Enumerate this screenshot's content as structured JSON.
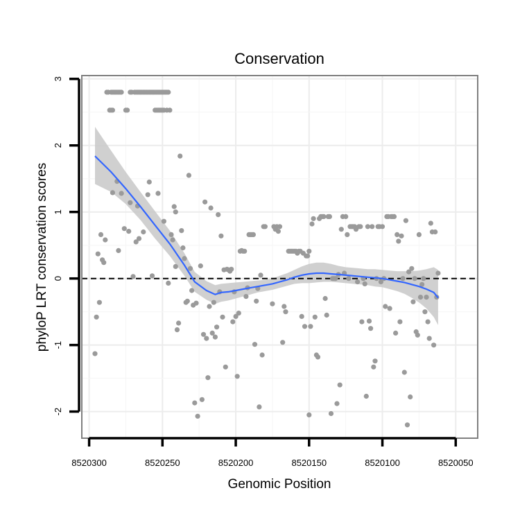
{
  "chart_data": {
    "type": "scatter",
    "title": "Conservation",
    "xlabel": "Genomic Position",
    "ylabel": "phyloP LRT conservation scores",
    "x_reversed": true,
    "xlim": [
      8520305,
      8520035
    ],
    "ylim": [
      -2.4,
      3.05
    ],
    "xticks": [
      8520300,
      8520250,
      8520200,
      8520150,
      8520100,
      8520050
    ],
    "xtick_labels": [
      "8520300",
      "8520250",
      "8520200",
      "8520150",
      "8520100",
      "8520050"
    ],
    "yticks": [
      -2,
      -1,
      0,
      1,
      2,
      3
    ],
    "ytick_labels": [
      "-2",
      "-1",
      "0",
      "1",
      "2",
      "3"
    ],
    "grid": true,
    "reference_line": {
      "y": 0,
      "style": "dashed"
    },
    "colors": {
      "points": "#9a9a9a",
      "smooth": "#3366ff",
      "ribbon": "#c8c8c8",
      "panel_border": "#7f7f7f",
      "grid": "#ececec"
    },
    "points": [
      [
        8520296,
        -1.13
      ],
      [
        8520295,
        -0.58
      ],
      [
        8520294,
        0.37
      ],
      [
        8520293,
        -0.36
      ],
      [
        8520292,
        0.66
      ],
      [
        8520291,
        0.28
      ],
      [
        8520290,
        0.24
      ],
      [
        8520289,
        0.58
      ],
      [
        8520288,
        2.8
      ],
      [
        8520287,
        2.8
      ],
      [
        8520285,
        2.8
      ],
      [
        8520284,
        2.8
      ],
      [
        8520283,
        2.8
      ],
      [
        8520282,
        2.8
      ],
      [
        8520281,
        2.8
      ],
      [
        8520280,
        2.8
      ],
      [
        8520279,
        2.8
      ],
      [
        8520278,
        2.8
      ],
      [
        8520286,
        2.53
      ],
      [
        8520285,
        2.53
      ],
      [
        8520284,
        2.53
      ],
      [
        8520284,
        1.29
      ],
      [
        8520281,
        1.46
      ],
      [
        8520280,
        0.42
      ],
      [
        8520278,
        1.28
      ],
      [
        8520276,
        0.75
      ],
      [
        8520275,
        2.53
      ],
      [
        8520274,
        2.53
      ],
      [
        8520273,
        0.71
      ],
      [
        8520272,
        1.14
      ],
      [
        8520272,
        2.8
      ],
      [
        8520271,
        2.8
      ],
      [
        8520270,
        0.03
      ],
      [
        8520269,
        2.8
      ],
      [
        8520268,
        2.8
      ],
      [
        8520267,
        2.8
      ],
      [
        8520266,
        2.8
      ],
      [
        8520265,
        2.8
      ],
      [
        8520264,
        2.8
      ],
      [
        8520263,
        2.8
      ],
      [
        8520262,
        2.8
      ],
      [
        8520261,
        2.8
      ],
      [
        8520260,
        2.8
      ],
      [
        8520259,
        2.8
      ],
      [
        8520258,
        2.8
      ],
      [
        8520257,
        2.8
      ],
      [
        8520256,
        2.8
      ],
      [
        8520255,
        2.8
      ],
      [
        8520254,
        2.8
      ],
      [
        8520253,
        2.8
      ],
      [
        8520252,
        2.8
      ],
      [
        8520251,
        2.8
      ],
      [
        8520250,
        2.8
      ],
      [
        8520249,
        2.8
      ],
      [
        8520248,
        2.8
      ],
      [
        8520247,
        2.8
      ],
      [
        8520246,
        2.8
      ],
      [
        8520268,
        0.55
      ],
      [
        8520267,
        1.09
      ],
      [
        8520266,
        0.6
      ],
      [
        8520263,
        0.7
      ],
      [
        8520260,
        1.26
      ],
      [
        8520259,
        1.45
      ],
      [
        8520257,
        0.04
      ],
      [
        8520255,
        2.53
      ],
      [
        8520254,
        2.53
      ],
      [
        8520253,
        2.53
      ],
      [
        8520252,
        2.53
      ],
      [
        8520251,
        2.53
      ],
      [
        8520250,
        2.53
      ],
      [
        8520249,
        2.53
      ],
      [
        8520247,
        2.53
      ],
      [
        8520245,
        2.53
      ],
      [
        8520253,
        1.28
      ],
      [
        8520249,
        0.86
      ],
      [
        8520246,
        -0.07
      ],
      [
        8520244,
        0.66
      ],
      [
        8520243,
        0.58
      ],
      [
        8520242,
        1.08
      ],
      [
        8520241,
        1.0
      ],
      [
        8520241,
        0.18
      ],
      [
        8520240,
        -0.77
      ],
      [
        8520239,
        -0.67
      ],
      [
        8520238,
        1.84
      ],
      [
        8520237,
        0.72
      ],
      [
        8520236,
        0.46
      ],
      [
        8520235,
        0.3
      ],
      [
        8520234,
        -0.36
      ],
      [
        8520233,
        -0.34
      ],
      [
        8520232,
        1.55
      ],
      [
        8520231,
        0.15
      ],
      [
        8520230,
        -0.18
      ],
      [
        8520229,
        -0.4
      ],
      [
        8520228,
        -1.87
      ],
      [
        8520227,
        -0.37
      ],
      [
        8520226,
        -2.07
      ],
      [
        8520224,
        0.19
      ],
      [
        8520223,
        -1.82
      ],
      [
        8520222,
        -0.84
      ],
      [
        8520221,
        1.15
      ],
      [
        8520220,
        -0.9
      ],
      [
        8520219,
        -1.49
      ],
      [
        8520218,
        -0.42
      ],
      [
        8520217,
        1.06
      ],
      [
        8520216,
        -0.82
      ],
      [
        8520215,
        -0.36
      ],
      [
        8520214,
        -0.88
      ],
      [
        8520213,
        -0.73
      ],
      [
        8520212,
        0.96
      ],
      [
        8520211,
        -0.2
      ],
      [
        8520210,
        0.64
      ],
      [
        8520209,
        -0.58
      ],
      [
        8520208,
        0.13
      ],
      [
        8520207,
        -1.33
      ],
      [
        8520206,
        0.14
      ],
      [
        8520205,
        0.13
      ],
      [
        8520204,
        0.11
      ],
      [
        8520203,
        0.14
      ],
      [
        8520202,
        -0.65
      ],
      [
        8520201,
        -0.2
      ],
      [
        8520200,
        -0.57
      ],
      [
        8520199,
        -1.47
      ],
      [
        8520198,
        -0.52
      ],
      [
        8520197,
        0.41
      ],
      [
        8520196,
        0.42
      ],
      [
        8520195,
        0.41
      ],
      [
        8520194,
        0.41
      ],
      [
        8520193,
        -0.27
      ],
      [
        8520192,
        -0.14
      ],
      [
        8520191,
        0.66
      ],
      [
        8520190,
        0.66
      ],
      [
        8520189,
        0.66
      ],
      [
        8520188,
        0.66
      ],
      [
        8520187,
        -0.99
      ],
      [
        8520186,
        -0.34
      ],
      [
        8520185,
        -0.15
      ],
      [
        8520184,
        -1.93
      ],
      [
        8520183,
        0.05
      ],
      [
        8520182,
        -1.15
      ],
      [
        8520181,
        0.78
      ],
      [
        8520180,
        0.78
      ],
      [
        8520175,
        -0.38
      ],
      [
        8520174,
        0.78
      ],
      [
        8520173,
        0.74
      ],
      [
        8520172,
        0.78
      ],
      [
        8520171,
        0.71
      ],
      [
        8520170,
        0.78
      ],
      [
        8520168,
        -0.96
      ],
      [
        8520167,
        -0.42
      ],
      [
        8520166,
        -0.5
      ],
      [
        8520164,
        0.41
      ],
      [
        8520163,
        0.41
      ],
      [
        8520162,
        0.41
      ],
      [
        8520161,
        0.41
      ],
      [
        8520160,
        0.41
      ],
      [
        8520159,
        0.41
      ],
      [
        8520158,
        0.38
      ],
      [
        8520157,
        0.41
      ],
      [
        8520156,
        0.41
      ],
      [
        8520155,
        -0.57
      ],
      [
        8520154,
        0.38
      ],
      [
        8520153,
        -0.72
      ],
      [
        8520152,
        0.34
      ],
      [
        8520151,
        0.34
      ],
      [
        8520150,
        0.41
      ],
      [
        8520150,
        -2.05
      ],
      [
        8520149,
        -0.72
      ],
      [
        8520148,
        0.82
      ],
      [
        8520147,
        0.9
      ],
      [
        8520146,
        -0.58
      ],
      [
        8520145,
        -1.15
      ],
      [
        8520144,
        -1.18
      ],
      [
        8520143,
        0.9
      ],
      [
        8520142,
        0.93
      ],
      [
        8520141,
        0.93
      ],
      [
        8520140,
        0.93
      ],
      [
        8520139,
        -0.3
      ],
      [
        8520138,
        -0.55
      ],
      [
        8520137,
        0.93
      ],
      [
        8520136,
        0.93
      ],
      [
        8520135,
        -2.03
      ],
      [
        8520134,
        0.0
      ],
      [
        8520133,
        0.0
      ],
      [
        8520132,
        0.0
      ],
      [
        8520131,
        -1.88
      ],
      [
        8520130,
        0.06
      ],
      [
        8520129,
        -1.6
      ],
      [
        8520128,
        0.74
      ],
      [
        8520127,
        0.93
      ],
      [
        8520126,
        0.08
      ],
      [
        8520125,
        0.93
      ],
      [
        8520124,
        0.66
      ],
      [
        8520123,
        0.0
      ],
      [
        8520122,
        0.78
      ],
      [
        8520121,
        0.78
      ],
      [
        8520120,
        0.78
      ],
      [
        8520119,
        0.78
      ],
      [
        8520118,
        0.74
      ],
      [
        8520117,
        -0.05
      ],
      [
        8520116,
        0.78
      ],
      [
        8520115,
        0.78
      ],
      [
        8520114,
        -0.65
      ],
      [
        8520113,
        0.0
      ],
      [
        8520112,
        -0.08
      ],
      [
        8520111,
        -1.77
      ],
      [
        8520110,
        0.78
      ],
      [
        8520109,
        -0.64
      ],
      [
        8520108,
        -0.75
      ],
      [
        8520107,
        0.78
      ],
      [
        8520106,
        -1.33
      ],
      [
        8520105,
        -1.24
      ],
      [
        8520104,
        0.0
      ],
      [
        8520103,
        0.78
      ],
      [
        8520102,
        0.78
      ],
      [
        8520101,
        -0.05
      ],
      [
        8520100,
        0.78
      ],
      [
        8520099,
        0.0
      ],
      [
        8520098,
        -0.42
      ],
      [
        8520097,
        0.93
      ],
      [
        8520096,
        0.93
      ],
      [
        8520095,
        -0.45
      ],
      [
        8520094,
        0.93
      ],
      [
        8520093,
        0.93
      ],
      [
        8520092,
        0.93
      ],
      [
        8520091,
        -0.82
      ],
      [
        8520090,
        0.66
      ],
      [
        8520089,
        0.56
      ],
      [
        8520088,
        -0.65
      ],
      [
        8520087,
        0.64
      ],
      [
        8520086,
        0.0
      ],
      [
        8520085,
        -1.41
      ],
      [
        8520084,
        0.87
      ],
      [
        8520083,
        -2.2
      ],
      [
        8520082,
        0.1
      ],
      [
        8520081,
        -1.78
      ],
      [
        8520080,
        0.15
      ],
      [
        8520079,
        -0.35
      ],
      [
        8520078,
        0.0
      ],
      [
        8520077,
        -0.8
      ],
      [
        8520076,
        -0.85
      ],
      [
        8520075,
        0.66
      ],
      [
        8520074,
        -0.28
      ],
      [
        8520073,
        -0.09
      ],
      [
        8520072,
        0.0
      ],
      [
        8520071,
        -0.5
      ],
      [
        8520070,
        -0.28
      ],
      [
        8520069,
        -0.65
      ],
      [
        8520068,
        -0.9
      ],
      [
        8520067,
        0.83
      ],
      [
        8520066,
        0.7
      ],
      [
        8520065,
        -1.0
      ],
      [
        8520064,
        0.7
      ],
      [
        8520063,
        -0.28
      ],
      [
        8520062,
        0.08
      ]
    ],
    "smooth": {
      "x": [
        8520296,
        8520285,
        8520275,
        8520265,
        8520255,
        8520245,
        8520235,
        8520228,
        8520220,
        8520214,
        8520210,
        8520205,
        8520200,
        8520195,
        8520190,
        8520185,
        8520180,
        8520175,
        8520170,
        8520165,
        8520160,
        8520155,
        8520150,
        8520145,
        8520140,
        8520135,
        8520130,
        8520125,
        8520120,
        8520115,
        8520110,
        8520105,
        8520100,
        8520095,
        8520090,
        8520085,
        8520080,
        8520075,
        8520070,
        8520065,
        8520062
      ],
      "y": [
        1.84,
        1.6,
        1.35,
        1.08,
        0.8,
        0.52,
        0.2,
        -0.05,
        -0.18,
        -0.24,
        -0.21,
        -0.2,
        -0.18,
        -0.16,
        -0.14,
        -0.12,
        -0.1,
        -0.08,
        -0.05,
        -0.02,
        0.02,
        0.05,
        0.07,
        0.08,
        0.08,
        0.07,
        0.06,
        0.05,
        0.04,
        0.03,
        0.02,
        0.01,
        0.0,
        -0.02,
        -0.04,
        -0.06,
        -0.09,
        -0.12,
        -0.16,
        -0.21,
        -0.29
      ],
      "lower": [
        1.42,
        1.3,
        1.12,
        0.88,
        0.6,
        0.34,
        0.04,
        -0.2,
        -0.32,
        -0.38,
        -0.35,
        -0.33,
        -0.3,
        -0.27,
        -0.24,
        -0.21,
        -0.19,
        -0.17,
        -0.14,
        -0.11,
        -0.08,
        -0.07,
        -0.07,
        -0.06,
        -0.05,
        -0.05,
        -0.06,
        -0.07,
        -0.08,
        -0.09,
        -0.1,
        -0.12,
        -0.13,
        -0.16,
        -0.19,
        -0.23,
        -0.29,
        -0.36,
        -0.45,
        -0.58,
        -0.7
      ],
      "upper": [
        2.28,
        1.92,
        1.6,
        1.3,
        1.01,
        0.72,
        0.38,
        0.1,
        -0.04,
        -0.1,
        -0.08,
        -0.07,
        -0.06,
        -0.05,
        -0.04,
        -0.03,
        -0.02,
        0.0,
        0.04,
        0.08,
        0.13,
        0.18,
        0.22,
        0.24,
        0.24,
        0.22,
        0.19,
        0.17,
        0.16,
        0.15,
        0.14,
        0.14,
        0.13,
        0.12,
        0.11,
        0.11,
        0.11,
        0.12,
        0.14,
        0.17,
        0.13
      ]
    }
  }
}
